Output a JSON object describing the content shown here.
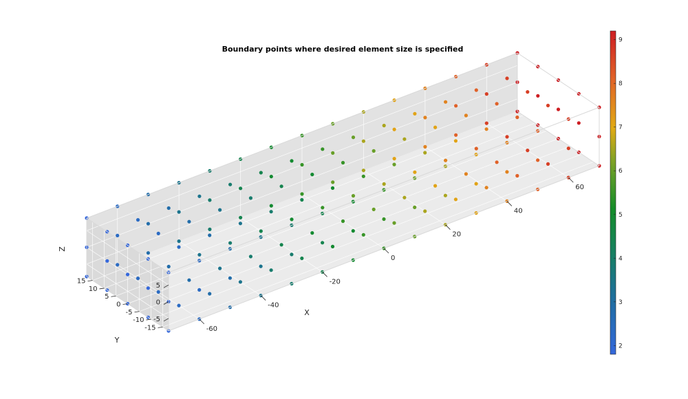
{
  "chart_data": {
    "type": "scatter",
    "title": "Boundary points where desired element size is specified",
    "xlabel": "X",
    "ylabel": "Y",
    "zlabel": "Z",
    "xlim": [
      -70,
      70
    ],
    "ylim": [
      -17.5,
      17.5
    ],
    "zlim": [
      -8.75,
      8.75
    ],
    "xticks": [
      -60,
      -40,
      -20,
      0,
      20,
      40,
      60
    ],
    "yticks": [
      -15,
      -10,
      -5,
      0,
      5,
      10,
      15
    ],
    "zticks": [
      -5,
      0,
      5
    ],
    "grid": true,
    "box": true,
    "colorbar": {
      "min": 1.8,
      "max": 9.2,
      "ticks": [
        2,
        3,
        4,
        5,
        6,
        7,
        8,
        9
      ],
      "colormap": "parula-like"
    },
    "x_grid": [
      -70,
      -60,
      -50,
      -40,
      -30,
      -20,
      -10,
      0,
      10,
      20,
      30,
      40,
      50,
      60,
      70
    ],
    "y_grid": [
      -17.5,
      -8.75,
      0,
      8.75,
      17.5
    ],
    "z_grid": [
      -8.75,
      0,
      8.75
    ],
    "value_rule": "color value = 1.8 + 7.4 * (x + 70) / 140"
  }
}
